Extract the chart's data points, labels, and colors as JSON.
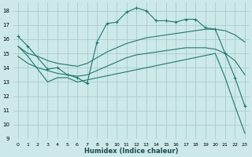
{
  "title": "",
  "xlabel": "Humidex (Indice chaleur)",
  "background_color": "#cce8e8",
  "grid_color": "#aacccc",
  "line_color": "#1a7a6e",
  "xlim": [
    -0.5,
    23.5
  ],
  "ylim": [
    9,
    18.6
  ],
  "yticks": [
    9,
    10,
    11,
    12,
    13,
    14,
    15,
    16,
    17,
    18
  ],
  "xticks": [
    0,
    1,
    2,
    3,
    4,
    5,
    6,
    7,
    8,
    9,
    10,
    11,
    12,
    13,
    14,
    15,
    16,
    17,
    18,
    19,
    20,
    21,
    22,
    23
  ],
  "series": [
    {
      "x": [
        0,
        1,
        3,
        4,
        5,
        6,
        7,
        8,
        9,
        10,
        11,
        12,
        13,
        14,
        15,
        16,
        17,
        18,
        19,
        20,
        21,
        22,
        23
      ],
      "y": [
        16.2,
        15.5,
        13.9,
        14.0,
        13.5,
        13.3,
        12.9,
        15.8,
        17.1,
        17.2,
        17.9,
        18.2,
        18.0,
        17.3,
        17.3,
        17.2,
        17.4,
        17.4,
        16.8,
        16.7,
        15.0,
        13.3,
        11.3
      ],
      "marker": true
    },
    {
      "x": [
        0,
        1,
        2,
        3,
        4,
        5,
        6,
        7,
        8,
        9,
        10,
        11,
        12,
        13,
        14,
        15,
        16,
        17,
        18,
        19,
        20,
        21,
        22,
        23
      ],
      "y": [
        15.5,
        15.0,
        14.8,
        14.5,
        14.3,
        14.2,
        14.1,
        14.3,
        14.7,
        15.1,
        15.4,
        15.7,
        15.9,
        16.1,
        16.2,
        16.3,
        16.4,
        16.5,
        16.6,
        16.7,
        16.7,
        16.6,
        16.3,
        15.8
      ],
      "marker": false
    },
    {
      "x": [
        0,
        1,
        2,
        3,
        4,
        5,
        6,
        7,
        8,
        9,
        10,
        11,
        12,
        13,
        14,
        15,
        16,
        17,
        18,
        19,
        20,
        21,
        22,
        23
      ],
      "y": [
        14.8,
        14.3,
        14.0,
        13.8,
        13.6,
        13.5,
        13.4,
        13.5,
        13.8,
        14.1,
        14.4,
        14.7,
        14.9,
        15.0,
        15.1,
        15.2,
        15.3,
        15.4,
        15.4,
        15.4,
        15.3,
        15.0,
        14.5,
        13.5
      ],
      "marker": false
    },
    {
      "x": [
        0,
        1,
        3,
        4,
        5,
        6,
        20,
        21,
        22,
        23
      ],
      "y": [
        15.5,
        14.8,
        13.0,
        13.3,
        13.3,
        13.0,
        15.0,
        13.3,
        11.3,
        9.4
      ],
      "marker": false
    }
  ]
}
